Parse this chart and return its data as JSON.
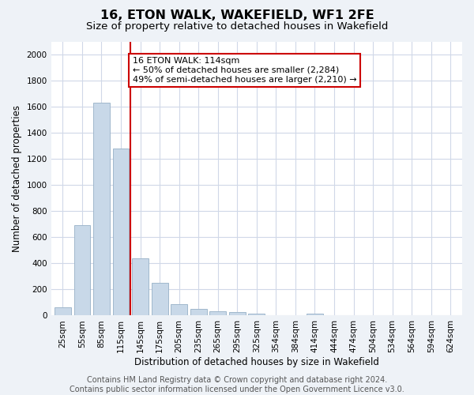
{
  "title": "16, ETON WALK, WAKEFIELD, WF1 2FE",
  "subtitle": "Size of property relative to detached houses in Wakefield",
  "xlabel": "Distribution of detached houses by size in Wakefield",
  "ylabel": "Number of detached properties",
  "bar_color": "#c8d8e8",
  "bar_edge_color": "#a0b8cc",
  "grid_color": "#d0d8e8",
  "annotation_box_color": "#cc0000",
  "annotation_text": "16 ETON WALK: 114sqm\n← 50% of detached houses are smaller (2,284)\n49% of semi-detached houses are larger (2,210) →",
  "vline_x": 4,
  "vline_color": "#cc0000",
  "categories": [
    "25sqm",
    "55sqm",
    "85sqm",
    "115sqm",
    "145sqm",
    "175sqm",
    "205sqm",
    "235sqm",
    "265sqm",
    "295sqm",
    "325sqm",
    "354sqm",
    "384sqm",
    "414sqm",
    "444sqm",
    "474sqm",
    "504sqm",
    "534sqm",
    "564sqm",
    "594sqm",
    "624sqm"
  ],
  "values": [
    65,
    690,
    1630,
    1280,
    440,
    250,
    90,
    50,
    35,
    25,
    15,
    0,
    0,
    15,
    0,
    0,
    0,
    0,
    0,
    0,
    0
  ],
  "ylim": [
    0,
    2100
  ],
  "yticks": [
    0,
    200,
    400,
    600,
    800,
    1000,
    1200,
    1400,
    1600,
    1800,
    2000
  ],
  "footer_text": "Contains HM Land Registry data © Crown copyright and database right 2024.\nContains public sector information licensed under the Open Government Licence v3.0.",
  "bg_color": "#eef2f7",
  "plot_bg_color": "#ffffff",
  "title_fontsize": 11.5,
  "subtitle_fontsize": 9.5,
  "tick_fontsize": 7.5,
  "label_fontsize": 8.5,
  "footer_fontsize": 7,
  "annot_fontsize": 8
}
